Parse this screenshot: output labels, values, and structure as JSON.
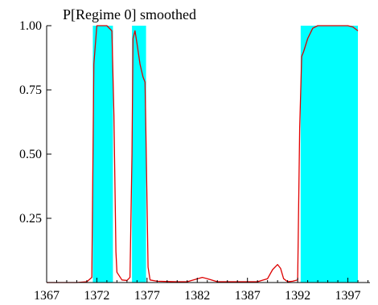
{
  "chart_data": {
    "type": "line",
    "title": "",
    "xlabel": "",
    "ylabel": "",
    "xlim": [
      1367,
      1399.2
    ],
    "ylim": [
      0,
      1.0
    ],
    "x_ticks": [
      1367,
      1372,
      1377,
      1382,
      1387,
      1392,
      1397
    ],
    "y_ticks": [
      0.25,
      0.5,
      0.75,
      1.0
    ],
    "x_tick_labels": [
      "1367",
      "1372",
      "1377",
      "1382",
      "1387",
      "1392",
      "1397"
    ],
    "y_tick_labels": [
      "0.25",
      "0.50",
      "0.75",
      "1.00"
    ],
    "legend": {
      "placement": "top-left",
      "entries": [
        "P[Regime 0] smoothed"
      ]
    },
    "grid": false,
    "colors": {
      "line": "#dd0000",
      "shade": "#00ffff",
      "axis": "#000000"
    },
    "shaded_regions": [
      {
        "x_start": 1371.6,
        "x_end": 1373.6
      },
      {
        "x_start": 1375.5,
        "x_end": 1376.9
      },
      {
        "x_start": 1392.3,
        "x_end": 1398.0
      }
    ],
    "series": [
      {
        "name": "P[Regime 0] smoothed",
        "x": [
          1367,
          1370,
          1371,
          1371.5,
          1371.7,
          1372,
          1373,
          1373.5,
          1373.7,
          1373.9,
          1374,
          1374.5,
          1375,
          1375.3,
          1375.5,
          1375.6,
          1375.8,
          1376,
          1376.3,
          1376.6,
          1376.8,
          1376.9,
          1377.1,
          1377.3,
          1378,
          1380,
          1381,
          1382.5,
          1383,
          1384,
          1385,
          1386,
          1387,
          1388,
          1389,
          1389.5,
          1390,
          1390.3,
          1390.6,
          1391,
          1391.5,
          1392,
          1392.2,
          1392.4,
          1392.6,
          1393,
          1393.5,
          1394,
          1395,
          1396,
          1397,
          1397.5,
          1398
        ],
        "y": [
          0,
          0,
          0.003,
          0.02,
          0.85,
          1.0,
          1.0,
          0.98,
          0.65,
          0.12,
          0.04,
          0.01,
          0.008,
          0.02,
          0.5,
          0.95,
          0.98,
          0.93,
          0.85,
          0.8,
          0.78,
          0.55,
          0.06,
          0.01,
          0.005,
          0.003,
          0.003,
          0.02,
          0.015,
          0.003,
          0.003,
          0.003,
          0.003,
          0.003,
          0.015,
          0.05,
          0.07,
          0.055,
          0.015,
          0.003,
          0.005,
          0.01,
          0.6,
          0.88,
          0.9,
          0.95,
          0.99,
          1.0,
          1.0,
          1.0,
          1.0,
          0.995,
          0.98
        ]
      }
    ]
  }
}
